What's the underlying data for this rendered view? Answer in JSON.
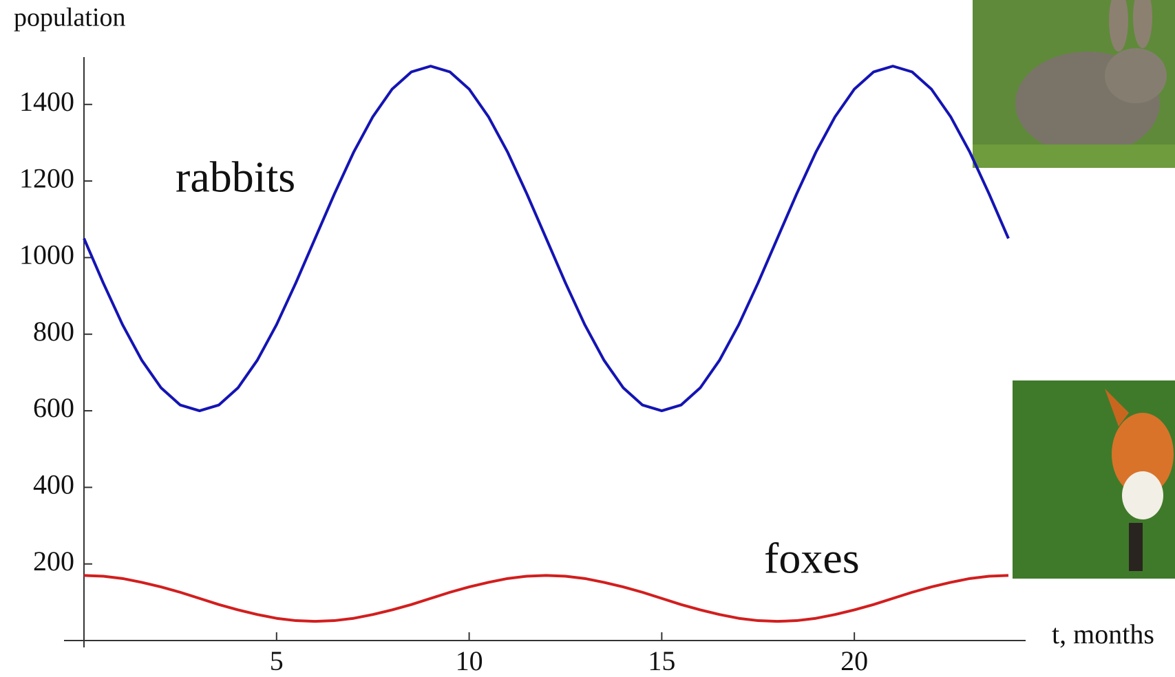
{
  "chart_data": {
    "type": "line",
    "y_label": "population",
    "x_label": "t, months",
    "annotations": [
      "rabbits",
      "foxes"
    ],
    "x": [
      0,
      0.5,
      1,
      1.5,
      2,
      2.5,
      3,
      3.5,
      4,
      4.5,
      5,
      5.5,
      6,
      6.5,
      7,
      7.5,
      8,
      8.5,
      9,
      9.5,
      10,
      10.5,
      11,
      11.5,
      12,
      12.5,
      13,
      13.5,
      14,
      14.5,
      15,
      15.5,
      16,
      16.5,
      17,
      17.5,
      18,
      18.5,
      19,
      19.5,
      20,
      20.5,
      21,
      21.5,
      22,
      22.5,
      23,
      23.5,
      24
    ],
    "series": [
      {
        "name": "rabbits",
        "color": "#1414b4",
        "values": [
          1050,
          934,
          825,
          732,
          660,
          615,
          600,
          615,
          660,
          732,
          825,
          934,
          1050,
          1166,
          1275,
          1368,
          1440,
          1485,
          1500,
          1485,
          1440,
          1368,
          1275,
          1166,
          1050,
          934,
          825,
          732,
          660,
          615,
          600,
          615,
          660,
          732,
          825,
          934,
          1050,
          1166,
          1275,
          1368,
          1440,
          1485,
          1500,
          1485,
          1440,
          1368,
          1275,
          1166,
          1050
        ]
      },
      {
        "name": "foxes",
        "color": "#d21e1e",
        "values": [
          170,
          168,
          162,
          152,
          140,
          126,
          110,
          94,
          80,
          68,
          58,
          52,
          50,
          52,
          58,
          68,
          80,
          94,
          110,
          126,
          140,
          152,
          162,
          168,
          170,
          168,
          162,
          152,
          140,
          126,
          110,
          94,
          80,
          68,
          58,
          52,
          50,
          52,
          58,
          68,
          80,
          94,
          110,
          126,
          140,
          152,
          162,
          168,
          170
        ]
      }
    ],
    "xlim": [
      0,
      24
    ],
    "ylim": [
      0,
      1520
    ],
    "xticks": [
      5,
      10,
      15,
      20
    ],
    "yticks": [
      200,
      400,
      600,
      800,
      1000,
      1200,
      1400
    ]
  }
}
